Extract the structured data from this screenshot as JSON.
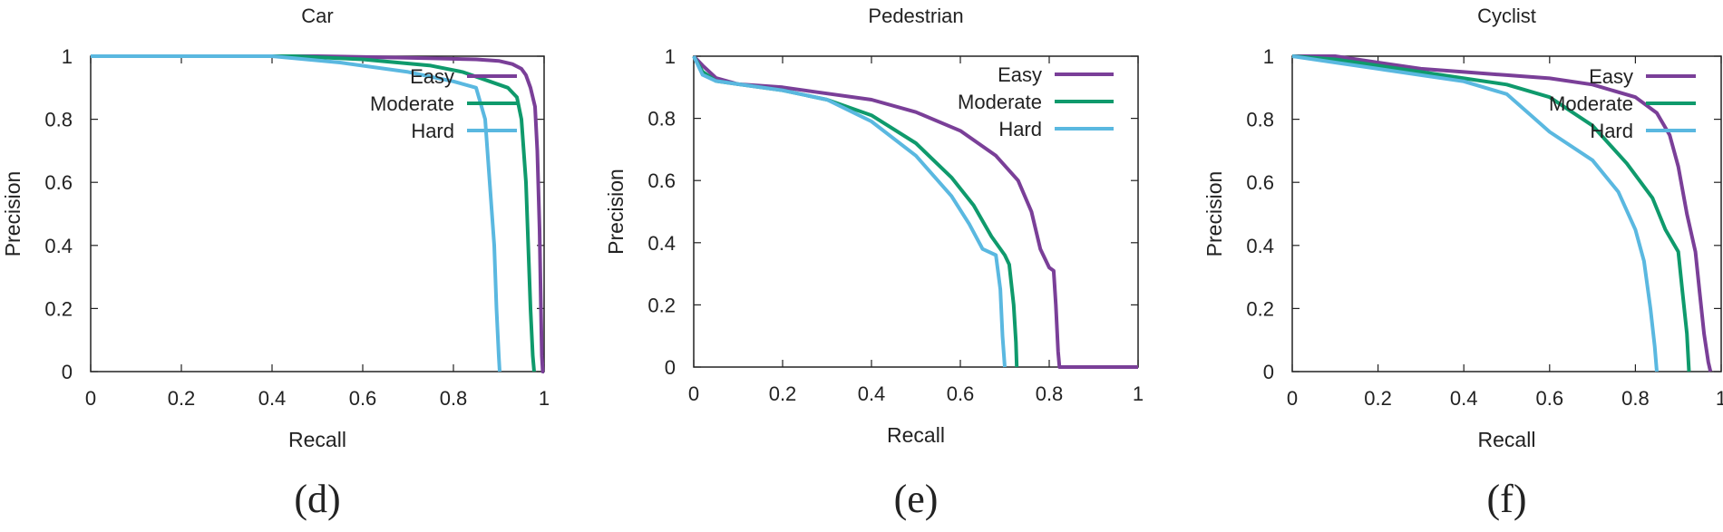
{
  "colors": {
    "easy": "#7a3f98",
    "moderate": "#0f9a6c",
    "hard": "#5ab8e0",
    "axis": "#222222"
  },
  "chart_data": [
    {
      "type": "line",
      "title": "Car",
      "caption": "(d)",
      "xlabel": "Recall",
      "ylabel": "Precision",
      "xlim": [
        0,
        1
      ],
      "ylim": [
        0,
        1
      ],
      "xticks": [
        "0",
        "0.2",
        "0.4",
        "0.6",
        "0.8",
        "1"
      ],
      "yticks": [
        "0",
        "0.2",
        "0.4",
        "0.6",
        "0.8",
        "1"
      ],
      "legend_position": "top-right",
      "series": [
        {
          "name": "Easy",
          "color_key": "easy",
          "points": [
            [
              0,
              1
            ],
            [
              0.5,
              1
            ],
            [
              0.7,
              0.995
            ],
            [
              0.85,
              0.99
            ],
            [
              0.9,
              0.985
            ],
            [
              0.93,
              0.975
            ],
            [
              0.95,
              0.96
            ],
            [
              0.96,
              0.94
            ],
            [
              0.97,
              0.9
            ],
            [
              0.98,
              0.84
            ],
            [
              0.985,
              0.7
            ],
            [
              0.99,
              0.45
            ],
            [
              0.993,
              0.2
            ],
            [
              0.995,
              0.05
            ],
            [
              0.997,
              0
            ],
            [
              1,
              0
            ]
          ]
        },
        {
          "name": "Moderate",
          "color_key": "moderate",
          "points": [
            [
              0,
              1
            ],
            [
              0.45,
              1
            ],
            [
              0.6,
              0.99
            ],
            [
              0.75,
              0.97
            ],
            [
              0.82,
              0.95
            ],
            [
              0.88,
              0.92
            ],
            [
              0.92,
              0.9
            ],
            [
              0.94,
              0.87
            ],
            [
              0.95,
              0.8
            ],
            [
              0.96,
              0.6
            ],
            [
              0.965,
              0.4
            ],
            [
              0.97,
              0.2
            ],
            [
              0.975,
              0.05
            ],
            [
              0.978,
              0
            ]
          ]
        },
        {
          "name": "Hard",
          "color_key": "hard",
          "points": [
            [
              0,
              1
            ],
            [
              0.4,
              1
            ],
            [
              0.55,
              0.98
            ],
            [
              0.7,
              0.95
            ],
            [
              0.8,
              0.92
            ],
            [
              0.85,
              0.9
            ],
            [
              0.87,
              0.8
            ],
            [
              0.88,
              0.6
            ],
            [
              0.89,
              0.4
            ],
            [
              0.895,
              0.2
            ],
            [
              0.9,
              0.05
            ],
            [
              0.902,
              0
            ]
          ]
        }
      ]
    },
    {
      "type": "line",
      "title": "Pedestrian",
      "caption": "(e)",
      "xlabel": "Recall",
      "ylabel": "Precision",
      "xlim": [
        0,
        1
      ],
      "ylim": [
        0,
        1
      ],
      "xticks": [
        "0",
        "0.2",
        "0.4",
        "0.6",
        "0.8",
        "1"
      ],
      "yticks": [
        "0",
        "0.2",
        "0.4",
        "0.6",
        "0.8",
        "1"
      ],
      "legend_position": "top-right",
      "series": [
        {
          "name": "Easy",
          "color_key": "easy",
          "points": [
            [
              0,
              1
            ],
            [
              0.02,
              0.97
            ],
            [
              0.05,
              0.93
            ],
            [
              0.1,
              0.91
            ],
            [
              0.2,
              0.9
            ],
            [
              0.3,
              0.88
            ],
            [
              0.4,
              0.86
            ],
            [
              0.5,
              0.82
            ],
            [
              0.6,
              0.76
            ],
            [
              0.68,
              0.68
            ],
            [
              0.73,
              0.6
            ],
            [
              0.76,
              0.5
            ],
            [
              0.78,
              0.38
            ],
            [
              0.8,
              0.32
            ],
            [
              0.81,
              0.31
            ],
            [
              0.815,
              0.2
            ],
            [
              0.82,
              0.05
            ],
            [
              0.823,
              0
            ],
            [
              1,
              0
            ]
          ]
        },
        {
          "name": "Moderate",
          "color_key": "moderate",
          "points": [
            [
              0,
              1
            ],
            [
              0.02,
              0.95
            ],
            [
              0.05,
              0.92
            ],
            [
              0.1,
              0.91
            ],
            [
              0.2,
              0.89
            ],
            [
              0.3,
              0.86
            ],
            [
              0.4,
              0.81
            ],
            [
              0.5,
              0.72
            ],
            [
              0.58,
              0.61
            ],
            [
              0.63,
              0.52
            ],
            [
              0.67,
              0.42
            ],
            [
              0.7,
              0.36
            ],
            [
              0.71,
              0.33
            ],
            [
              0.72,
              0.2
            ],
            [
              0.725,
              0.08
            ],
            [
              0.727,
              0
            ]
          ]
        },
        {
          "name": "Hard",
          "color_key": "hard",
          "points": [
            [
              0,
              1
            ],
            [
              0.02,
              0.94
            ],
            [
              0.05,
              0.92
            ],
            [
              0.1,
              0.91
            ],
            [
              0.2,
              0.89
            ],
            [
              0.3,
              0.86
            ],
            [
              0.4,
              0.79
            ],
            [
              0.5,
              0.68
            ],
            [
              0.58,
              0.55
            ],
            [
              0.62,
              0.46
            ],
            [
              0.65,
              0.38
            ],
            [
              0.68,
              0.36
            ],
            [
              0.69,
              0.25
            ],
            [
              0.695,
              0.1
            ],
            [
              0.7,
              0
            ]
          ]
        }
      ]
    },
    {
      "type": "line",
      "title": "Cyclist",
      "caption": "(f)",
      "xlabel": "Recall",
      "ylabel": "Precision",
      "xlim": [
        0,
        1
      ],
      "ylim": [
        0,
        1
      ],
      "xticks": [
        "0",
        "0.2",
        "0.4",
        "0.6",
        "0.8",
        "1"
      ],
      "yticks": [
        "0",
        "0.2",
        "0.4",
        "0.6",
        "0.8",
        "1"
      ],
      "legend_position": "top-right",
      "series": [
        {
          "name": "Easy",
          "color_key": "easy",
          "points": [
            [
              0,
              1
            ],
            [
              0.1,
              1
            ],
            [
              0.2,
              0.98
            ],
            [
              0.3,
              0.96
            ],
            [
              0.4,
              0.95
            ],
            [
              0.5,
              0.94
            ],
            [
              0.6,
              0.93
            ],
            [
              0.7,
              0.91
            ],
            [
              0.8,
              0.87
            ],
            [
              0.85,
              0.82
            ],
            [
              0.88,
              0.75
            ],
            [
              0.9,
              0.65
            ],
            [
              0.92,
              0.5
            ],
            [
              0.94,
              0.38
            ],
            [
              0.95,
              0.25
            ],
            [
              0.96,
              0.12
            ],
            [
              0.97,
              0.03
            ],
            [
              0.975,
              0
            ]
          ]
        },
        {
          "name": "Moderate",
          "color_key": "moderate",
          "points": [
            [
              0,
              1
            ],
            [
              0.1,
              0.99
            ],
            [
              0.2,
              0.97
            ],
            [
              0.3,
              0.95
            ],
            [
              0.4,
              0.93
            ],
            [
              0.5,
              0.91
            ],
            [
              0.6,
              0.87
            ],
            [
              0.7,
              0.78
            ],
            [
              0.78,
              0.66
            ],
            [
              0.84,
              0.55
            ],
            [
              0.87,
              0.45
            ],
            [
              0.9,
              0.38
            ],
            [
              0.91,
              0.25
            ],
            [
              0.92,
              0.12
            ],
            [
              0.925,
              0
            ]
          ]
        },
        {
          "name": "Hard",
          "color_key": "hard",
          "points": [
            [
              0,
              1
            ],
            [
              0.1,
              0.98
            ],
            [
              0.2,
              0.96
            ],
            [
              0.3,
              0.94
            ],
            [
              0.4,
              0.92
            ],
            [
              0.5,
              0.88
            ],
            [
              0.55,
              0.82
            ],
            [
              0.6,
              0.76
            ],
            [
              0.7,
              0.67
            ],
            [
              0.76,
              0.57
            ],
            [
              0.8,
              0.45
            ],
            [
              0.82,
              0.35
            ],
            [
              0.835,
              0.2
            ],
            [
              0.845,
              0.08
            ],
            [
              0.85,
              0
            ]
          ]
        }
      ]
    }
  ]
}
